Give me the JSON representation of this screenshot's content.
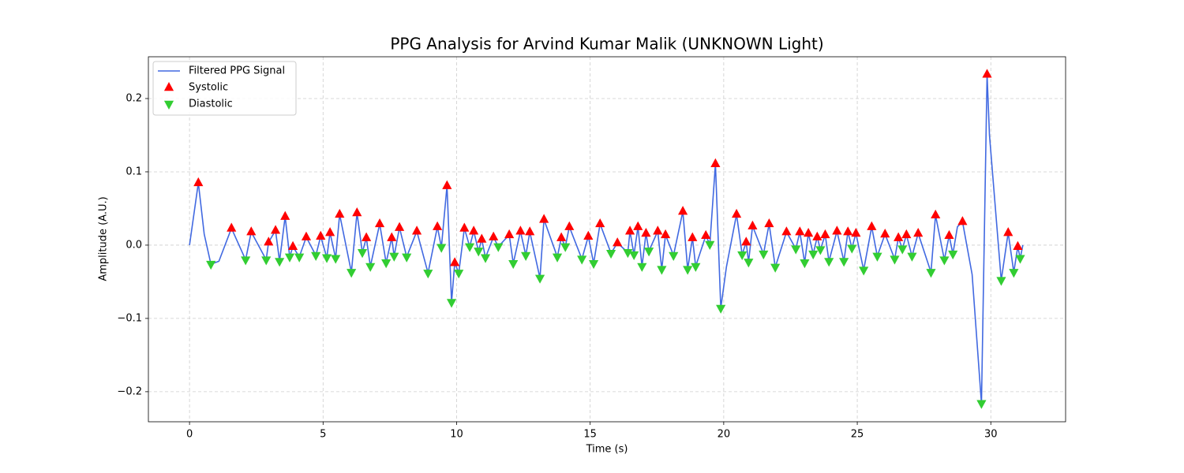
{
  "chart_data": {
    "type": "line",
    "title": "PPG Analysis for Arvind Kumar Malik (UNKNOWN Light)",
    "xlabel": "Time (s)",
    "ylabel": "Amplitude (A.U.)",
    "xlim": [
      -1.54,
      32.8
    ],
    "ylim": [
      -0.241,
      0.257
    ],
    "xticks": [
      0,
      5,
      10,
      15,
      20,
      25,
      30
    ],
    "yticks": [
      {
        "value": -0.2,
        "label": "−0.2"
      },
      {
        "value": -0.1,
        "label": "−0.1"
      },
      {
        "value": 0,
        "label": "0.0"
      },
      0.1,
      0.2
    ],
    "grid": true,
    "legend": "upper left",
    "series": [
      {
        "name": "Filtered PPG Signal",
        "color": "#4169e1",
        "marker": "line",
        "x": [
          0,
          0.33,
          0.55,
          0.8,
          1.1,
          1.57,
          2.1,
          2.31,
          2.87,
          2.96,
          3.22,
          3.37,
          3.58,
          3.75,
          3.87,
          4.11,
          4.37,
          4.73,
          4.91,
          5.14,
          5.26,
          5.47,
          5.62,
          6.06,
          6.27,
          6.47,
          6.62,
          6.77,
          7.12,
          7.36,
          7.57,
          7.66,
          7.86,
          8.13,
          8.51,
          8.93,
          9.28,
          9.43,
          9.64,
          9.81,
          9.93,
          10.08,
          10.29,
          10.49,
          10.64,
          10.82,
          10.94,
          11.08,
          11.38,
          11.56,
          11.97,
          12.12,
          12.39,
          12.59,
          12.74,
          13.12,
          13.27,
          13.77,
          13.92,
          14.07,
          14.22,
          14.69,
          14.93,
          15.13,
          15.37,
          15.78,
          16.02,
          16.41,
          16.49,
          16.64,
          16.79,
          16.94,
          17.09,
          17.2,
          17.53,
          17.68,
          17.82,
          18.12,
          18.47,
          18.65,
          18.83,
          18.95,
          19.33,
          19.48,
          19.69,
          19.89,
          20.1,
          20.48,
          20.69,
          20.84,
          20.93,
          21.08,
          21.49,
          21.7,
          21.93,
          22.35,
          22.7,
          22.85,
          23.03,
          23.17,
          23.35,
          23.5,
          23.62,
          23.8,
          23.94,
          24.24,
          24.5,
          24.65,
          24.8,
          24.95,
          25.24,
          25.54,
          25.75,
          26.04,
          26.4,
          26.54,
          26.69,
          26.84,
          27.05,
          27.28,
          27.76,
          27.93,
          28.26,
          28.44,
          28.58,
          28.75,
          28.94,
          29.3,
          29.65,
          29.86,
          29.95,
          30.39,
          30.65,
          30.86,
          31.01,
          31.1,
          31.2
        ],
        "values": [
          0,
          0.085,
          0.015,
          -0.026,
          -0.022,
          0.023,
          -0.02,
          0.018,
          -0.02,
          0.004,
          0.02,
          -0.022,
          0.039,
          -0.016,
          -0.002,
          -0.016,
          0.011,
          -0.014,
          0.012,
          -0.017,
          0.017,
          -0.018,
          0.042,
          -0.037,
          0.044,
          -0.01,
          0.01,
          -0.029,
          0.029,
          -0.024,
          0.01,
          -0.015,
          0.024,
          -0.016,
          0.019,
          -0.038,
          0.025,
          -0.003,
          0.081,
          -0.078,
          -0.024,
          -0.038,
          0.023,
          -0.002,
          0.019,
          -0.008,
          0.008,
          -0.017,
          0.011,
          -0.002,
          0.014,
          -0.025,
          0.019,
          -0.014,
          0.018,
          -0.045,
          0.035,
          -0.016,
          0.01,
          -0.002,
          0.025,
          -0.019,
          0.012,
          -0.025,
          0.029,
          -0.011,
          0.003,
          -0.01,
          0.019,
          -0.013,
          0.025,
          -0.029,
          0.016,
          -0.008,
          0.019,
          -0.033,
          0.014,
          -0.014,
          0.046,
          -0.033,
          0.01,
          -0.029,
          0.013,
          0.001,
          0.111,
          -0.086,
          -0.03,
          0.042,
          -0.013,
          0.004,
          -0.023,
          0.026,
          -0.012,
          0.029,
          -0.03,
          0.018,
          -0.005,
          0.018,
          -0.024,
          0.016,
          -0.012,
          0.011,
          -0.006,
          0.014,
          -0.022,
          0.019,
          -0.022,
          0.018,
          -0.004,
          0.016,
          -0.034,
          0.025,
          -0.015,
          0.015,
          -0.019,
          0.01,
          -0.005,
          0.014,
          -0.015,
          0.016,
          -0.037,
          0.041,
          -0.02,
          0.013,
          -0.012,
          0.025,
          0.032,
          -0.04,
          -0.216,
          0.233,
          0.15,
          -0.048,
          0.017,
          -0.037,
          -0.002,
          -0.018,
          0
        ]
      },
      {
        "name": "Systolic",
        "color": "#ff0000",
        "marker": "up",
        "x": [
          0.33,
          1.57,
          2.31,
          2.96,
          3.22,
          3.58,
          3.87,
          4.37,
          4.91,
          5.26,
          5.62,
          6.27,
          6.62,
          7.12,
          7.57,
          7.86,
          8.51,
          9.28,
          9.64,
          9.93,
          10.29,
          10.64,
          10.94,
          11.38,
          11.97,
          12.39,
          12.74,
          13.27,
          13.92,
          14.22,
          14.93,
          15.37,
          16.02,
          16.49,
          16.79,
          17.09,
          17.53,
          17.82,
          18.47,
          18.83,
          19.33,
          19.69,
          20.48,
          20.84,
          21.08,
          21.7,
          22.35,
          22.85,
          23.17,
          23.5,
          23.8,
          24.24,
          24.65,
          24.95,
          25.54,
          26.04,
          26.54,
          26.84,
          27.28,
          27.93,
          28.44,
          28.94,
          29.86,
          30.65,
          31.01
        ],
        "values": [
          0.085,
          0.023,
          0.018,
          0.004,
          0.02,
          0.039,
          -0.002,
          0.011,
          0.012,
          0.017,
          0.042,
          0.044,
          0.01,
          0.029,
          0.01,
          0.024,
          0.019,
          0.025,
          0.081,
          -0.024,
          0.023,
          0.019,
          0.008,
          0.011,
          0.014,
          0.019,
          0.018,
          0.035,
          0.01,
          0.025,
          0.012,
          0.029,
          0.003,
          0.019,
          0.025,
          0.016,
          0.019,
          0.014,
          0.046,
          0.01,
          0.013,
          0.111,
          0.042,
          0.004,
          0.026,
          0.029,
          0.018,
          0.018,
          0.016,
          0.011,
          0.014,
          0.019,
          0.018,
          0.016,
          0.025,
          0.015,
          0.01,
          0.014,
          0.016,
          0.041,
          0.013,
          0.032,
          0.233,
          0.017,
          -0.002
        ]
      },
      {
        "name": "Diastolic",
        "color": "#32cd32",
        "marker": "down",
        "x": [
          0.8,
          2.1,
          2.87,
          3.37,
          3.75,
          4.11,
          4.73,
          5.14,
          5.47,
          6.06,
          6.47,
          6.77,
          7.36,
          7.66,
          8.13,
          8.93,
          9.43,
          9.81,
          10.08,
          10.49,
          10.82,
          11.08,
          11.56,
          12.12,
          12.59,
          13.12,
          13.77,
          14.07,
          14.69,
          15.13,
          15.78,
          16.41,
          16.64,
          16.94,
          17.2,
          17.68,
          18.12,
          18.65,
          18.95,
          19.48,
          19.89,
          20.69,
          20.93,
          21.49,
          21.93,
          22.7,
          23.03,
          23.35,
          23.62,
          23.94,
          24.5,
          24.8,
          25.24,
          25.75,
          26.4,
          26.69,
          27.05,
          27.76,
          28.26,
          28.58,
          29.65,
          30.39,
          30.86,
          31.1
        ],
        "values": [
          -0.026,
          -0.02,
          -0.02,
          -0.022,
          -0.016,
          -0.016,
          -0.014,
          -0.017,
          -0.018,
          -0.037,
          -0.01,
          -0.029,
          -0.024,
          -0.015,
          -0.016,
          -0.038,
          -0.003,
          -0.078,
          -0.038,
          -0.002,
          -0.008,
          -0.017,
          -0.002,
          -0.025,
          -0.014,
          -0.045,
          -0.016,
          -0.002,
          -0.019,
          -0.025,
          -0.011,
          -0.01,
          -0.013,
          -0.029,
          -0.008,
          -0.033,
          -0.014,
          -0.033,
          -0.029,
          0.001,
          -0.086,
          -0.013,
          -0.023,
          -0.012,
          -0.03,
          -0.005,
          -0.024,
          -0.012,
          -0.006,
          -0.022,
          -0.022,
          -0.004,
          -0.034,
          -0.015,
          -0.019,
          -0.005,
          -0.015,
          -0.037,
          -0.02,
          -0.012,
          -0.216,
          -0.048,
          -0.037,
          -0.018
        ]
      }
    ]
  }
}
